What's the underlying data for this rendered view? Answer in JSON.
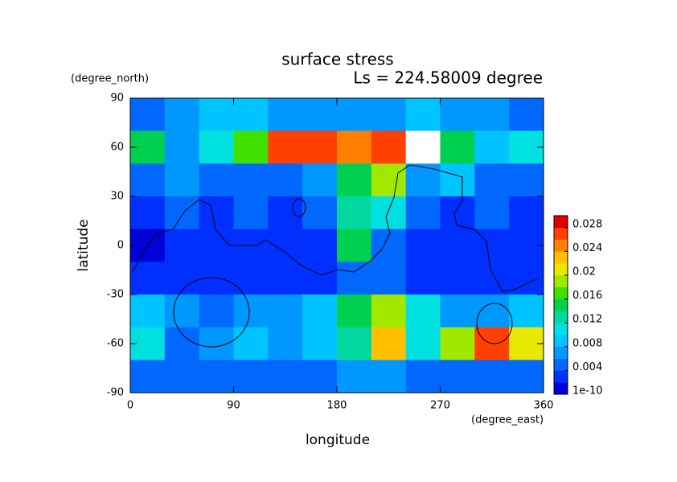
{
  "chart_data": {
    "type": "contour",
    "title": "surface stress",
    "subtitle": "Ls = 224.58009 degree",
    "x_label": "longitude",
    "y_label": "latitude",
    "x_unit": "(degree_east)",
    "y_unit": "(degree_north)",
    "xlim": [
      0,
      360
    ],
    "xticks": [
      0,
      90,
      180,
      270,
      360
    ],
    "ylim": [
      -90,
      90
    ],
    "yticks": [
      -90,
      -60,
      -30,
      0,
      30,
      60,
      90
    ],
    "x": [
      15,
      45,
      75,
      105,
      135,
      165,
      195,
      225,
      255,
      285,
      315,
      345
    ],
    "y": [
      80,
      60,
      40,
      20,
      0,
      -20,
      -40,
      -60,
      -80
    ],
    "z": [
      [
        0.004,
        0.006,
        0.008,
        0.008,
        0.006,
        0.006,
        0.006,
        0.006,
        0.008,
        0.006,
        0.006,
        0.004
      ],
      [
        0.014,
        0.006,
        0.01,
        0.016,
        0.026,
        0.026,
        0.024,
        0.026,
        0.031,
        0.014,
        0.008,
        0.01
      ],
      [
        0.004,
        0.006,
        0.004,
        0.004,
        0.004,
        0.006,
        0.014,
        0.018,
        0.006,
        0.008,
        0.004,
        0.004
      ],
      [
        0.002,
        0.004,
        0.002,
        0.004,
        0.002,
        0.004,
        0.012,
        0.01,
        0.004,
        0.002,
        0.004,
        0.002
      ],
      [
        0.001,
        0.002,
        0.002,
        0.002,
        0.002,
        0.002,
        0.014,
        0.004,
        0.002,
        0.002,
        0.002,
        0.002
      ],
      [
        0.002,
        0.002,
        0.002,
        0.002,
        0.002,
        0.002,
        0.004,
        0.004,
        0.002,
        0.002,
        0.002,
        0.002
      ],
      [
        0.008,
        0.006,
        0.004,
        0.006,
        0.006,
        0.008,
        0.014,
        0.018,
        0.01,
        0.006,
        0.006,
        0.008
      ],
      [
        0.01,
        0.004,
        0.006,
        0.008,
        0.006,
        0.008,
        0.012,
        0.022,
        0.01,
        0.018,
        0.026,
        0.02
      ],
      [
        0.004,
        0.004,
        0.004,
        0.004,
        0.004,
        0.004,
        0.006,
        0.006,
        0.004,
        0.004,
        0.004,
        0.004
      ]
    ],
    "colorbar": {
      "lim": [
        0,
        0.03
      ],
      "ticks": [
        1e-10,
        0.004,
        0.008,
        0.012,
        0.016,
        0.02,
        0.024,
        0.028
      ],
      "levels": [
        0,
        0.002,
        0.004,
        0.006,
        0.008,
        0.01,
        0.012,
        0.014,
        0.016,
        0.018,
        0.02,
        0.022,
        0.024,
        0.026,
        0.028,
        0.03
      ],
      "colors": [
        "#0000d8",
        "#0030ff",
        "#0068ff",
        "#0098ff",
        "#00c4ff",
        "#00e0e0",
        "#00d8a0",
        "#00d050",
        "#40e000",
        "#a0e800",
        "#e8e800",
        "#ffc000",
        "#ff8000",
        "#ff4000",
        "#e00000"
      ],
      "above_color": "#ffffff"
    }
  }
}
